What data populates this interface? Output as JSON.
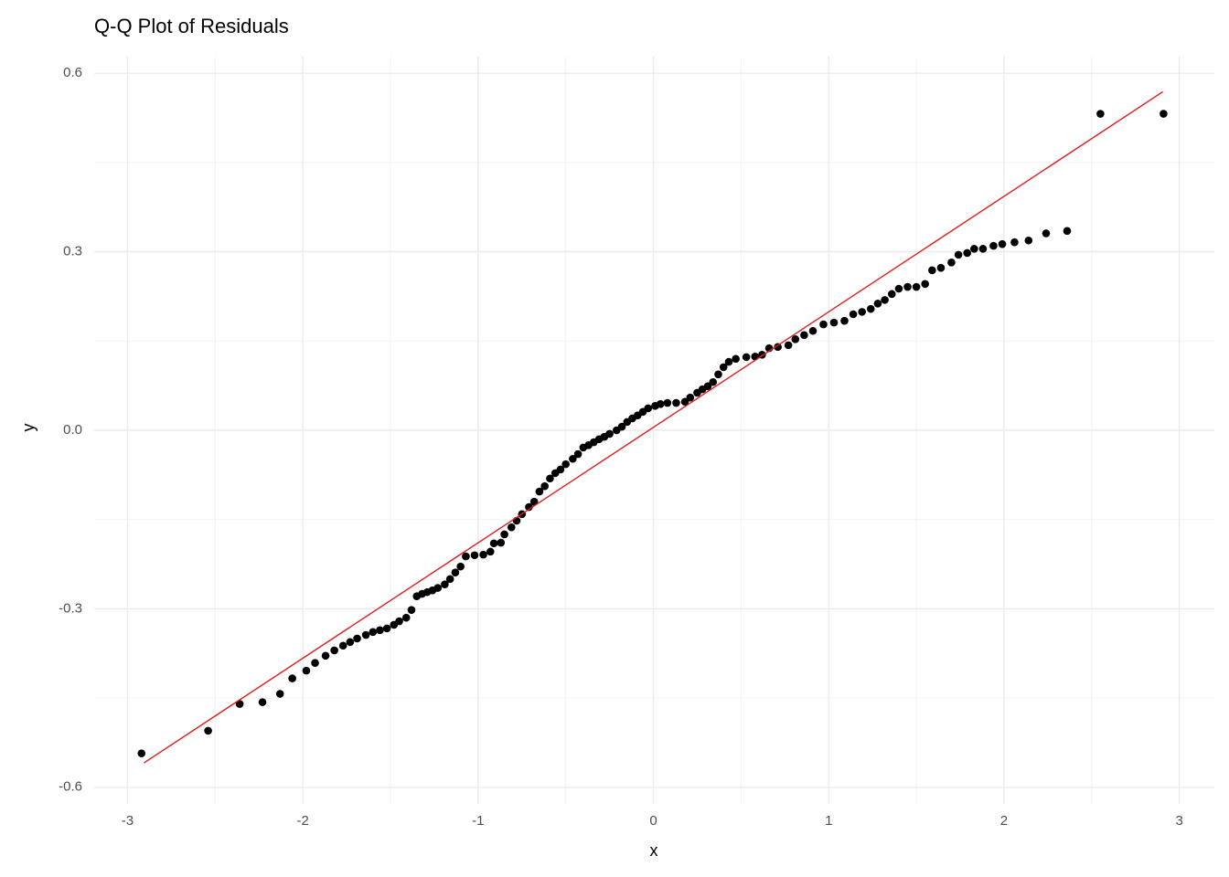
{
  "chart_data": {
    "type": "scatter",
    "title": "Q-Q Plot of Residuals",
    "xlabel": "x",
    "ylabel": "y",
    "x": [
      -2.92,
      -2.54,
      -2.36,
      -2.23,
      -2.13,
      -2.06,
      -1.98,
      -1.93,
      -1.87,
      -1.82,
      -1.77,
      -1.73,
      -1.69,
      -1.64,
      -1.6,
      -1.56,
      -1.52,
      -1.48,
      -1.45,
      -1.41,
      -1.38,
      -1.35,
      -1.32,
      -1.29,
      -1.26,
      -1.23,
      -1.19,
      -1.16,
      -1.13,
      -1.1,
      -1.07,
      -1.02,
      -0.97,
      -0.93,
      -0.91,
      -0.87,
      -0.85,
      -0.81,
      -0.78,
      -0.75,
      -0.71,
      -0.68,
      -0.65,
      -0.62,
      -0.59,
      -0.56,
      -0.53,
      -0.5,
      -0.46,
      -0.43,
      -0.4,
      -0.37,
      -0.34,
      -0.31,
      -0.28,
      -0.25,
      -0.21,
      -0.18,
      -0.15,
      -0.12,
      -0.09,
      -0.06,
      -0.03,
      0.01,
      0.04,
      0.08,
      0.13,
      0.18,
      0.21,
      0.25,
      0.28,
      0.31,
      0.34,
      0.37,
      0.4,
      0.43,
      0.47,
      0.53,
      0.58,
      0.62,
      0.66,
      0.71,
      0.77,
      0.81,
      0.86,
      0.91,
      0.97,
      1.03,
      1.09,
      1.14,
      1.19,
      1.24,
      1.28,
      1.32,
      1.36,
      1.4,
      1.45,
      1.5,
      1.55,
      1.59,
      1.64,
      1.7,
      1.74,
      1.79,
      1.83,
      1.88,
      1.94,
      1.99,
      2.06,
      2.14,
      2.24,
      2.36,
      2.55,
      2.91
    ],
    "values": [
      -0.543,
      -0.505,
      -0.46,
      -0.457,
      -0.443,
      -0.417,
      -0.404,
      -0.391,
      -0.379,
      -0.37,
      -0.362,
      -0.356,
      -0.35,
      -0.344,
      -0.339,
      -0.336,
      -0.333,
      -0.327,
      -0.321,
      -0.315,
      -0.302,
      -0.279,
      -0.275,
      -0.272,
      -0.269,
      -0.265,
      -0.259,
      -0.25,
      -0.239,
      -0.229,
      -0.212,
      -0.21,
      -0.209,
      -0.204,
      -0.19,
      -0.189,
      -0.175,
      -0.163,
      -0.152,
      -0.141,
      -0.129,
      -0.12,
      -0.103,
      -0.094,
      -0.081,
      -0.072,
      -0.066,
      -0.057,
      -0.048,
      -0.04,
      -0.029,
      -0.025,
      -0.02,
      -0.015,
      -0.011,
      -0.006,
      0.0,
      0.006,
      0.014,
      0.02,
      0.025,
      0.031,
      0.037,
      0.041,
      0.044,
      0.046,
      0.046,
      0.048,
      0.055,
      0.063,
      0.069,
      0.074,
      0.081,
      0.094,
      0.106,
      0.115,
      0.12,
      0.123,
      0.124,
      0.127,
      0.138,
      0.14,
      0.143,
      0.153,
      0.16,
      0.167,
      0.178,
      0.181,
      0.184,
      0.195,
      0.199,
      0.204,
      0.213,
      0.219,
      0.229,
      0.238,
      0.241,
      0.241,
      0.246,
      0.269,
      0.273,
      0.282,
      0.295,
      0.298,
      0.305,
      0.305,
      0.31,
      0.313,
      0.316,
      0.319,
      0.331,
      0.335,
      0.532,
      0.532
    ],
    "color": "#000000",
    "reference_line": {
      "x": [
        -2.906,
        2.906
      ],
      "values": [
        -0.559,
        0.569
      ],
      "color": "#e41a1c"
    },
    "xlim": [
      -3.19,
      3.2
    ],
    "ylim": [
      -0.628,
      0.628
    ],
    "xticks": [
      -3,
      -2,
      -1,
      0,
      1,
      2,
      3
    ],
    "yticks": [
      {
        "value": -0.6,
        "label": "-0.6"
      },
      {
        "value": -0.3,
        "label": "-0.3"
      },
      {
        "value": 0,
        "label": "0.0"
      },
      0.3,
      0.6
    ],
    "x_minor_ticks": [
      -2.5,
      -1.5,
      -0.5,
      0.5,
      1.5,
      2.5
    ],
    "y_minor_ticks": [
      -0.45,
      -0.15,
      0.15,
      0.45
    ],
    "grid": true
  }
}
